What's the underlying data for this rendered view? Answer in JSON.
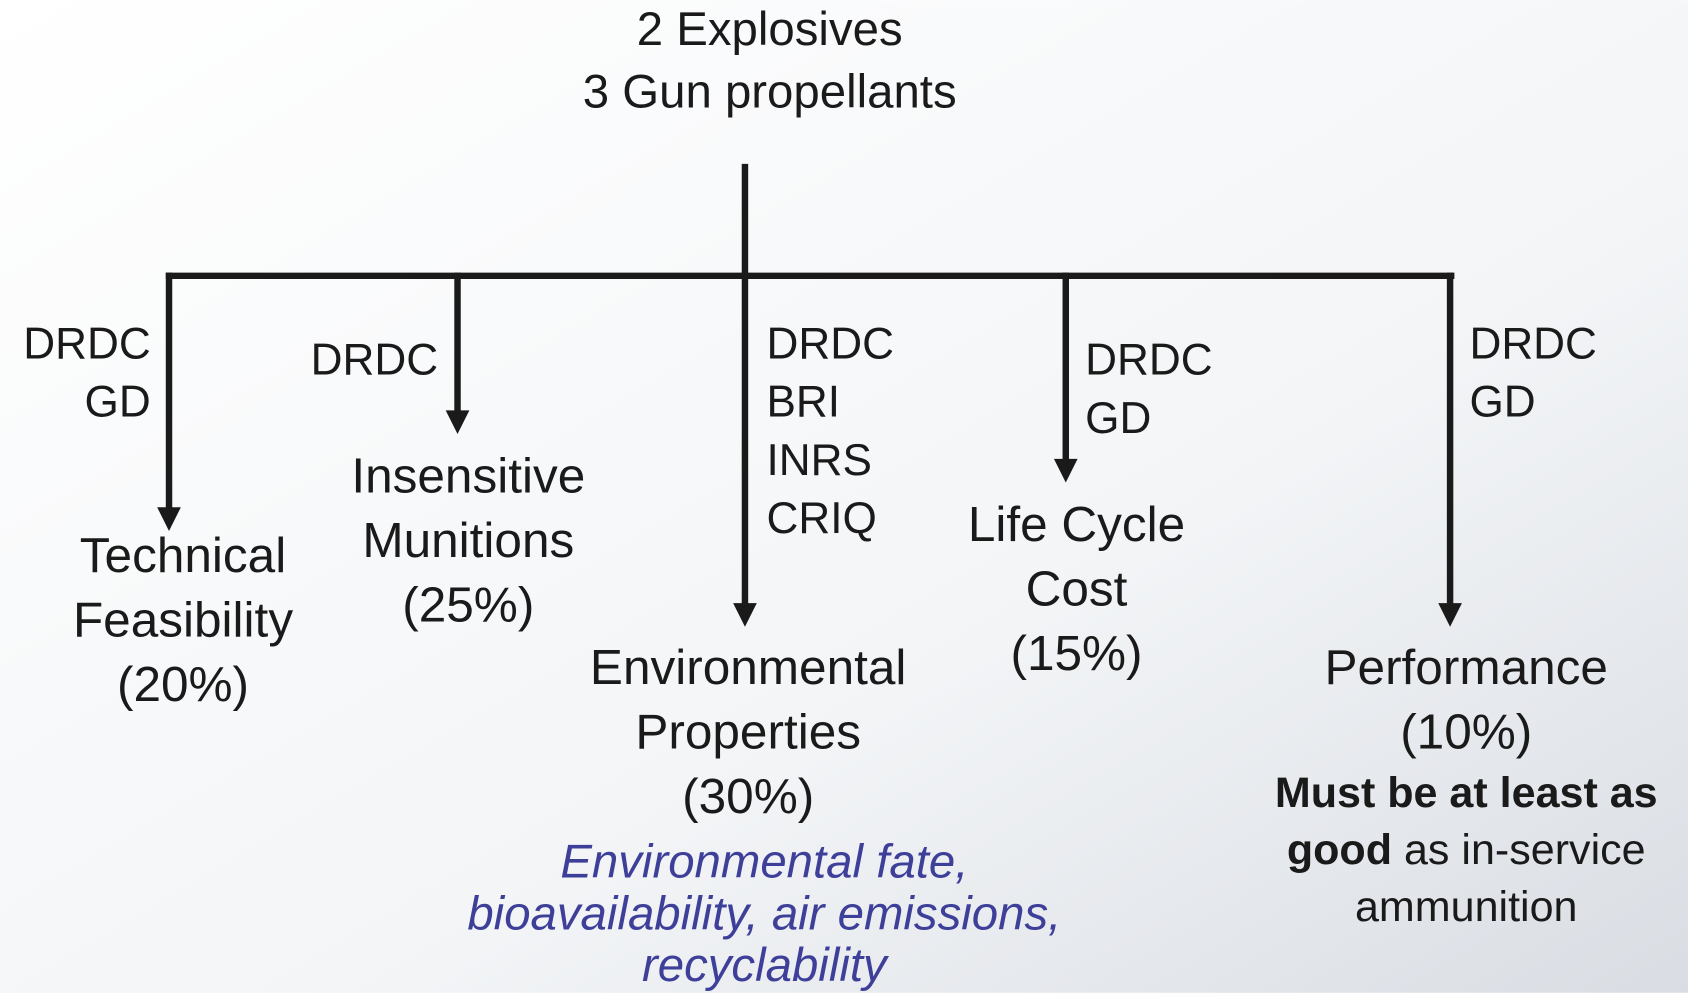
{
  "root": {
    "lines": [
      "2 Explosives",
      "3 Gun propellants"
    ]
  },
  "branches": [
    {
      "orgs": [
        "DRDC",
        "GD"
      ],
      "name_lines": [
        "Technical",
        "Feasibility"
      ],
      "weight": "(20%)"
    },
    {
      "orgs": [
        "DRDC"
      ],
      "name_lines": [
        "Insensitive",
        "Munitions"
      ],
      "weight": "(25%)"
    },
    {
      "orgs": [
        "DRDC",
        "BRI",
        "INRS",
        "CRIQ"
      ],
      "name_lines": [
        "Environmental",
        "Properties"
      ],
      "weight": "(30%)",
      "note_lines": [
        [
          {
            "text": "Environmental fate,"
          }
        ],
        [
          {
            "text": "bioavailability, air emissions,"
          }
        ],
        [
          {
            "text": "recyclability"
          }
        ]
      ]
    },
    {
      "orgs": [
        "DRDC",
        "GD"
      ],
      "name_lines": [
        "Life Cycle",
        "Cost"
      ],
      "weight": "(15%)"
    },
    {
      "orgs": [
        "DRDC",
        "GD"
      ],
      "name_lines": [
        "Performance"
      ],
      "weight": "(10%)",
      "note_lines": [
        [
          {
            "text": "Must be at least as",
            "bold": true
          }
        ],
        [
          {
            "text": "good",
            "bold": true
          },
          {
            "text": " as in-service"
          }
        ],
        [
          {
            "text": "ammunition"
          }
        ]
      ]
    }
  ]
}
